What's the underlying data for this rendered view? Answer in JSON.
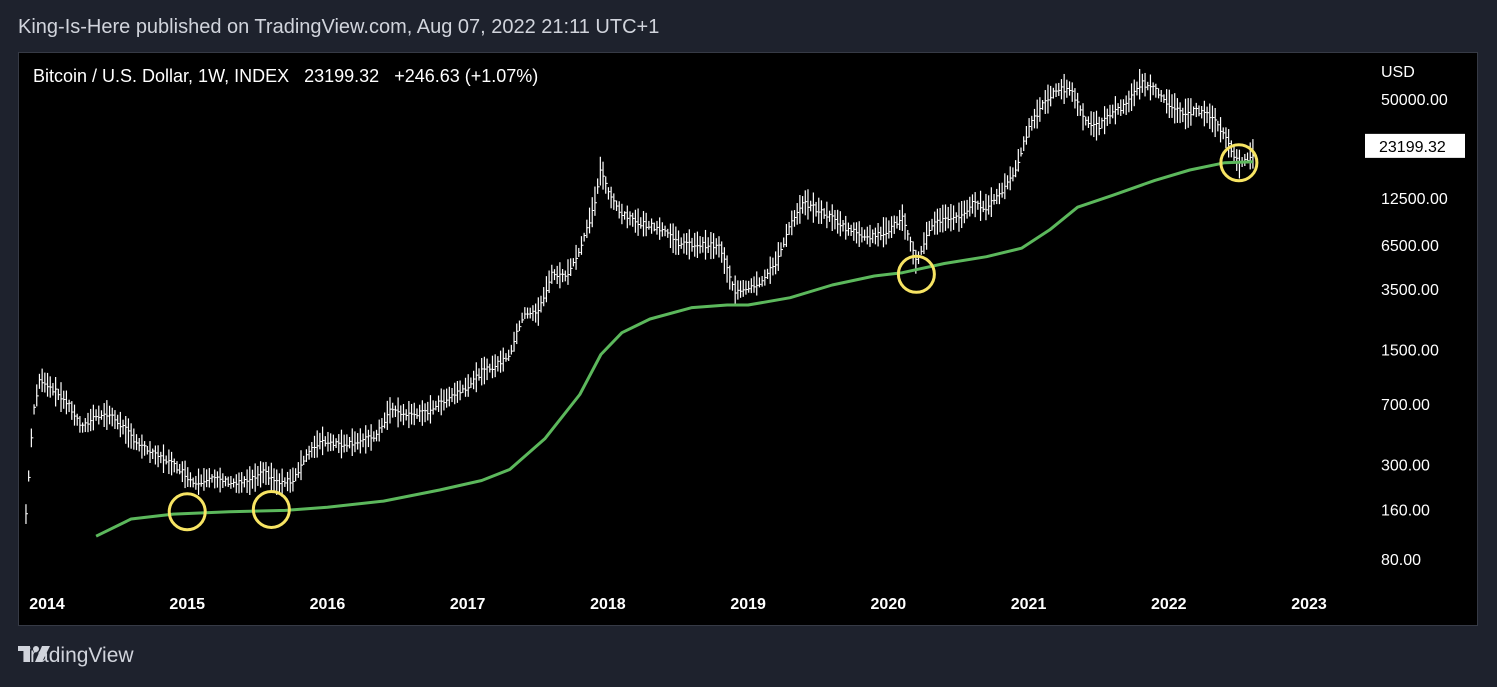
{
  "header": {
    "published_text": "King-Is-Here published on TradingView.com, Aug 07, 2022 21:11 UTC+1"
  },
  "legend": {
    "symbol": "Bitcoin / U.S. Dollar, 1W, INDEX",
    "last": "23199.32",
    "change": "+246.63 (+1.07%)"
  },
  "footer": {
    "brand": "TradingView",
    "logo_icon": "tradingview-logo-icon"
  },
  "colors": {
    "background": "#000000",
    "price_bars": "#ffffff",
    "moving_average": "#5cb85c",
    "highlight_circles": "#f7e463",
    "page": "#1e222d"
  },
  "chart_data": {
    "type": "line",
    "scale": "log",
    "currency_label": "USD",
    "y_ticks": [
      50000,
      12500,
      6500,
      3500,
      1500,
      700,
      300,
      160,
      80
    ],
    "y_tick_labels": [
      "50000.00",
      "12500.00",
      "6500.00",
      "3500.00",
      "1500.00",
      "700.00",
      "300.00",
      "160.00",
      "80.00"
    ],
    "last_price_label": "23199.32",
    "last_price": 23199.32,
    "x_tick_labels": [
      "2014",
      "2015",
      "2016",
      "2017",
      "2018",
      "2019",
      "2020",
      "2021",
      "2022",
      "2023"
    ],
    "x_ticks": [
      2014,
      2015,
      2016,
      2017,
      2018,
      2019,
      2020,
      2021,
      2022,
      2023
    ],
    "series": [
      {
        "kind": "price",
        "x": [
          2013.85,
          2013.9,
          2013.95,
          2014.05,
          2014.15,
          2014.25,
          2014.35,
          2014.45,
          2014.55,
          2014.65,
          2014.75,
          2014.85,
          2014.95,
          2015.05,
          2015.15,
          2015.25,
          2015.35,
          2015.45,
          2015.55,
          2015.65,
          2015.75,
          2015.85,
          2015.95,
          2016.1,
          2016.25,
          2016.35,
          2016.45,
          2016.55,
          2016.7,
          2016.85,
          2017.0,
          2017.1,
          2017.2,
          2017.3,
          2017.4,
          2017.5,
          2017.6,
          2017.7,
          2017.8,
          2017.9,
          2017.95,
          2018.0,
          2018.1,
          2018.2,
          2018.3,
          2018.4,
          2018.5,
          2018.6,
          2018.7,
          2018.8,
          2018.9,
          2019.0,
          2019.1,
          2019.2,
          2019.3,
          2019.4,
          2019.5,
          2019.6,
          2019.7,
          2019.8,
          2019.9,
          2020.0,
          2020.1,
          2020.2,
          2020.3,
          2020.4,
          2020.5,
          2020.6,
          2020.7,
          2020.8,
          2020.9,
          2021.0,
          2021.1,
          2021.2,
          2021.3,
          2021.4,
          2021.5,
          2021.6,
          2021.7,
          2021.8,
          2021.9,
          2022.0,
          2022.1,
          2022.2,
          2022.3,
          2022.4,
          2022.5,
          2022.6
        ],
        "values": [
          150,
          600,
          1000,
          850,
          700,
          500,
          600,
          600,
          500,
          400,
          350,
          320,
          280,
          230,
          250,
          240,
          230,
          240,
          270,
          230,
          240,
          340,
          420,
          400,
          420,
          450,
          650,
          600,
          620,
          760,
          900,
          1100,
          1200,
          1400,
          2500,
          2500,
          4300,
          4200,
          6000,
          11000,
          19000,
          13500,
          10000,
          9000,
          8500,
          8000,
          6700,
          6500,
          6500,
          6300,
          3400,
          3600,
          3900,
          5100,
          8500,
          11800,
          10500,
          9500,
          8200,
          7500,
          7300,
          8000,
          9500,
          5000,
          8500,
          9500,
          9500,
          11500,
          11000,
          13500,
          18000,
          33000,
          46000,
          57000,
          58000,
          37000,
          34000,
          42000,
          46000,
          63000,
          57000,
          47000,
          40000,
          43000,
          39000,
          30000,
          20000,
          23199
        ]
      },
      {
        "kind": "moving_average",
        "x": [
          2014.35,
          2014.6,
          2014.9,
          2015.3,
          2015.7,
          2016.0,
          2016.4,
          2016.8,
          2017.1,
          2017.3,
          2017.55,
          2017.8,
          2017.95,
          2018.1,
          2018.3,
          2018.6,
          2018.85,
          2019.0,
          2019.3,
          2019.6,
          2019.9,
          2020.1,
          2020.4,
          2020.7,
          2020.95,
          2021.15,
          2021.35,
          2021.6,
          2021.9,
          2022.15,
          2022.4,
          2022.6
        ],
        "values": [
          110,
          140,
          150,
          155,
          158,
          165,
          180,
          210,
          240,
          280,
          430,
          800,
          1400,
          1900,
          2300,
          2700,
          2800,
          2800,
          3100,
          3700,
          4200,
          4400,
          5000,
          5500,
          6200,
          8000,
          11000,
          13000,
          16000,
          18500,
          20500,
          20800
        ]
      }
    ],
    "highlights": [
      {
        "x": 2015.0,
        "y": 155
      },
      {
        "x": 2015.6,
        "y": 160
      },
      {
        "x": 2020.2,
        "y": 4300
      },
      {
        "x": 2022.5,
        "y": 20500
      }
    ]
  }
}
